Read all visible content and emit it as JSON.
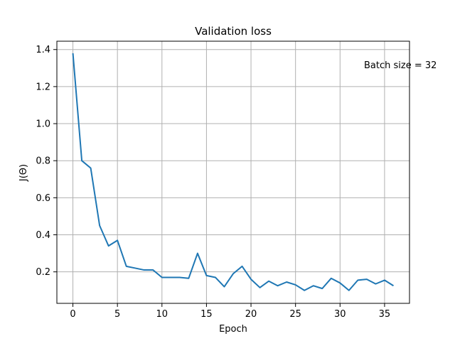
{
  "chart_data": {
    "type": "line",
    "title": "Validation loss",
    "xlabel": "Epoch",
    "ylabel": "J(Θ)",
    "annotation": "Batch size = 32",
    "xlim": [
      -1.8,
      37.8
    ],
    "ylim": [
      0.03,
      1.445
    ],
    "xticks": [
      0,
      5,
      10,
      15,
      20,
      25,
      30,
      35
    ],
    "yticks": [
      0.2,
      0.4,
      0.6,
      0.8,
      1.0,
      1.2,
      1.4
    ],
    "xtick_labels": [
      "0",
      "5",
      "10",
      "15",
      "20",
      "25",
      "30",
      "35"
    ],
    "ytick_labels": [
      "0.2",
      "0.4",
      "0.6",
      "0.8",
      "1.0",
      "1.2",
      "1.4"
    ],
    "grid": true,
    "series": [
      {
        "color": "#1f77b4",
        "x": [
          0,
          1,
          2,
          3,
          4,
          5,
          6,
          7,
          8,
          9,
          10,
          11,
          12,
          13,
          14,
          15,
          16,
          17,
          18,
          19,
          20,
          21,
          22,
          23,
          24,
          25,
          26,
          27,
          28,
          29,
          30,
          31,
          32,
          33,
          34,
          35,
          36
        ],
        "y": [
          1.38,
          0.8,
          0.76,
          0.45,
          0.34,
          0.37,
          0.23,
          0.22,
          0.21,
          0.21,
          0.17,
          0.17,
          0.17,
          0.165,
          0.3,
          0.18,
          0.17,
          0.12,
          0.19,
          0.23,
          0.16,
          0.115,
          0.15,
          0.125,
          0.145,
          0.13,
          0.1,
          0.125,
          0.11,
          0.165,
          0.14,
          0.1,
          0.155,
          0.16,
          0.135,
          0.155,
          0.125
        ]
      }
    ]
  }
}
